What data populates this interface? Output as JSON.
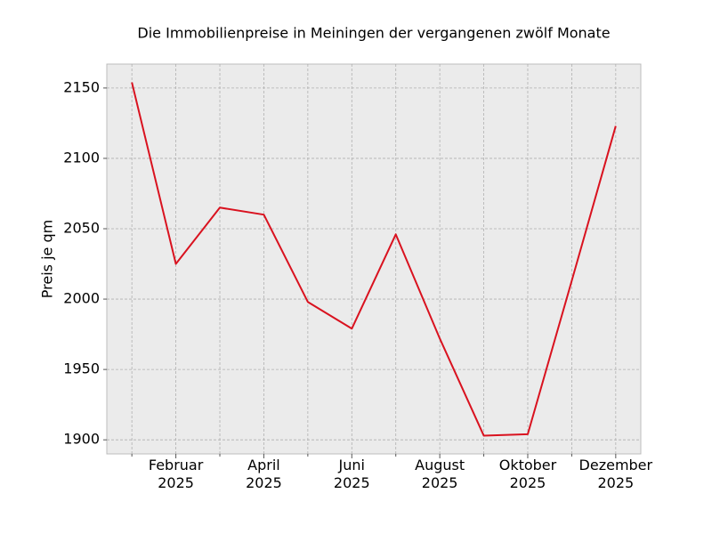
{
  "chart_data": {
    "type": "line",
    "title": "Die Immobilienpreise in Meiningen der vergangenen zwölf Monate",
    "y_label": "Preis je qm",
    "categories": [
      null,
      "Februar\n2025",
      null,
      "April\n2025",
      null,
      "Juni\n2025",
      null,
      "August\n2025",
      null,
      "Oktober\n2025",
      null,
      "Dezember\n2025"
    ],
    "values": [
      2154,
      2025,
      2065,
      2060,
      1998,
      1979,
      2046,
      1972,
      1903,
      1904,
      2013,
      2123
    ],
    "color": "#d9121f",
    "ylim": [
      1890,
      2167
    ],
    "yticks": [
      1900,
      1950,
      2000,
      2050,
      2100,
      2150
    ],
    "grid": true
  }
}
